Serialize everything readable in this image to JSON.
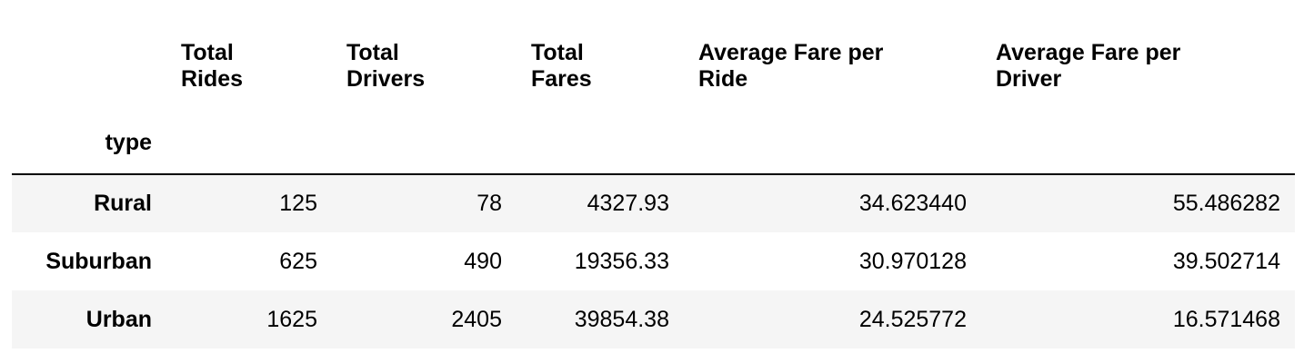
{
  "table": {
    "index_name": "type",
    "columns": [
      "Total\nRides",
      "Total\nDrivers",
      "Total\nFares",
      "Average Fare per\nRide",
      "Average Fare per\nDriver"
    ],
    "rows": [
      {
        "index": "Rural",
        "values": [
          "125",
          "78",
          "4327.93",
          "34.623440",
          "55.486282"
        ]
      },
      {
        "index": "Suburban",
        "values": [
          "625",
          "490",
          "19356.33",
          "30.970128",
          "39.502714"
        ]
      },
      {
        "index": "Urban",
        "values": [
          "1625",
          "2405",
          "39854.38",
          "24.525772",
          "16.571468"
        ]
      }
    ],
    "colors": {
      "stripe": "#f5f5f5",
      "divider": "#000000",
      "text": "#000000"
    }
  }
}
